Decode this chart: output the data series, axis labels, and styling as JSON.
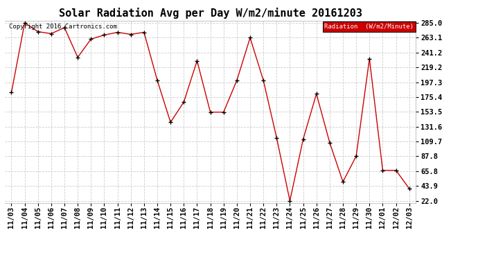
{
  "title": "Solar Radiation Avg per Day W/m2/minute 20161203",
  "copyright": "Copyright 2016 Cartronics.com",
  "legend_label": "Radiation  (W/m2/Minute)",
  "x_labels": [
    "11/03",
    "11/04",
    "11/05",
    "11/06",
    "11/07",
    "11/08",
    "11/09",
    "11/10",
    "11/11",
    "11/12",
    "11/13",
    "11/14",
    "11/15",
    "11/16",
    "11/17",
    "11/18",
    "11/19",
    "11/20",
    "11/21",
    "11/22",
    "11/23",
    "11/24",
    "11/25",
    "11/26",
    "11/27",
    "11/28",
    "11/29",
    "11/30",
    "12/01",
    "12/02",
    "12/03"
  ],
  "y_values": [
    182,
    285,
    272,
    269,
    278,
    234,
    261,
    267,
    271,
    268,
    271,
    200,
    138,
    168,
    229,
    153,
    153,
    200,
    263,
    200,
    115,
    22,
    113,
    180,
    108,
    50,
    88,
    232,
    67,
    67,
    40
  ],
  "y_ticks": [
    22.0,
    43.9,
    65.8,
    87.8,
    109.7,
    131.6,
    153.5,
    175.4,
    197.3,
    219.2,
    241.2,
    263.1,
    285.0
  ],
  "line_color": "#cc0000",
  "marker": "+",
  "bg_color": "#ffffff",
  "plot_bg": "#ffffff",
  "grid_color": "#cccccc",
  "legend_bg": "#cc0000",
  "legend_text_color": "#ffffff",
  "title_fontsize": 11,
  "tick_fontsize": 7.5,
  "copyright_fontsize": 6.5,
  "ylim_min": 22.0,
  "ylim_max": 285.0
}
